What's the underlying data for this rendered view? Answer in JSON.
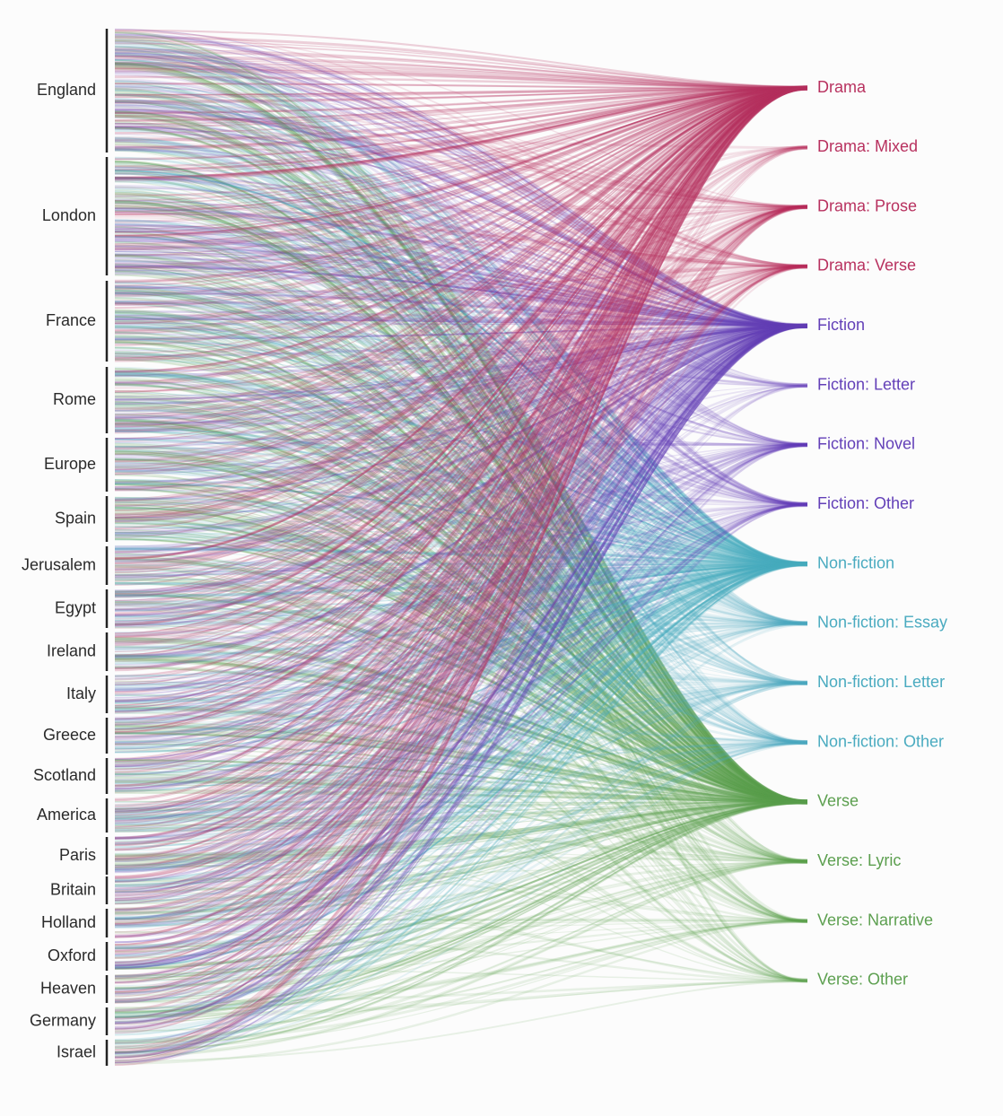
{
  "sources": [
    "England",
    "London",
    "France",
    "Rome",
    "Europe",
    "Spain",
    "Jerusalem",
    "Egypt",
    "Ireland",
    "Italy",
    "Greece",
    "Scotland",
    "America",
    "Paris",
    "Britain",
    "Holland",
    "Oxford",
    "Heaven",
    "Germany",
    "Israel"
  ],
  "targets": [
    {
      "label": "Drama",
      "group": "drama"
    },
    {
      "label": "Drama: Mixed",
      "group": "drama"
    },
    {
      "label": "Drama: Prose",
      "group": "drama"
    },
    {
      "label": "Drama: Verse",
      "group": "drama"
    },
    {
      "label": "Fiction",
      "group": "fiction"
    },
    {
      "label": "Fiction: Letter",
      "group": "fiction"
    },
    {
      "label": "Fiction: Novel",
      "group": "fiction"
    },
    {
      "label": "Fiction: Other",
      "group": "fiction"
    },
    {
      "label": "Non-fiction",
      "group": "nonfiction"
    },
    {
      "label": "Non-fiction: Essay",
      "group": "nonfiction"
    },
    {
      "label": "Non-fiction: Letter",
      "group": "nonfiction"
    },
    {
      "label": "Non-fiction: Other",
      "group": "nonfiction"
    },
    {
      "label": "Verse",
      "group": "verse"
    },
    {
      "label": "Verse: Lyric",
      "group": "verse"
    },
    {
      "label": "Verse: Narrative",
      "group": "verse"
    },
    {
      "label": "Verse: Other",
      "group": "verse"
    }
  ],
  "colors": {
    "drama": "#b8315f",
    "fiction": "#6340b8",
    "nonfiction": "#4aabc0",
    "verse": "#5c9f4f",
    "axis": "#222222"
  }
}
